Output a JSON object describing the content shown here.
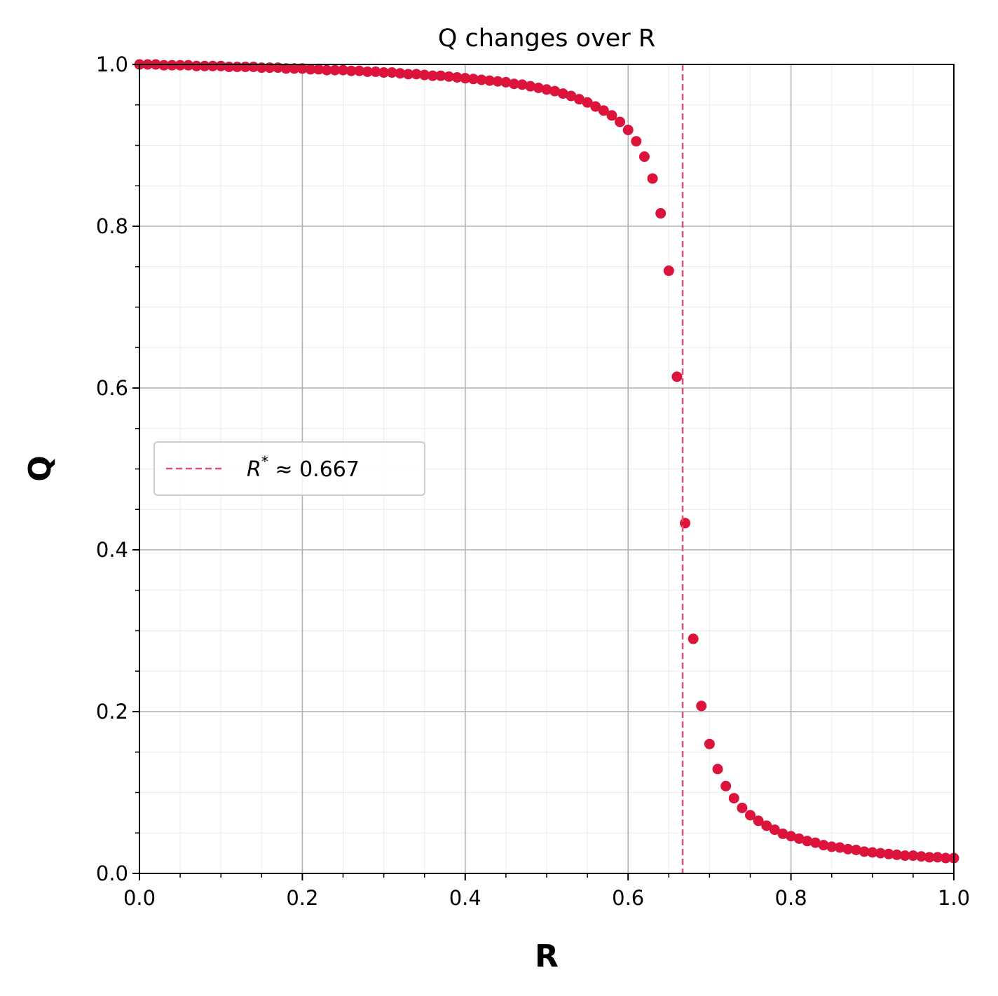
{
  "chart_data": {
    "type": "scatter",
    "title": "Q changes over R",
    "xlabel": "R",
    "ylabel": "Q",
    "xlim": [
      0,
      1
    ],
    "ylim": [
      0,
      1
    ],
    "xticks": [
      "0.0",
      "0.2",
      "0.4",
      "0.6",
      "0.8",
      "1.0"
    ],
    "yticks": [
      "0.0",
      "0.2",
      "0.4",
      "0.6",
      "0.8",
      "1.0"
    ],
    "grid": true,
    "minor_grid": true,
    "colors": {
      "marker": "#dc143c",
      "refline": "#e05070",
      "grid_major": "#b0b0b0",
      "grid_minor": "#ececec"
    },
    "reference_line": {
      "x": 0.667,
      "style": "dashed",
      "label_symbol": "R",
      "label_superscript": "*",
      "label_text": " ≈ 0.667"
    },
    "legend_placement": "center-left",
    "series": [
      {
        "marker": "circle",
        "x": [
          0.0,
          0.01,
          0.02,
          0.03,
          0.04,
          0.05,
          0.06,
          0.07,
          0.08,
          0.09,
          0.1,
          0.11,
          0.12,
          0.13,
          0.14,
          0.15,
          0.16,
          0.17,
          0.18,
          0.19,
          0.2,
          0.21,
          0.22,
          0.23,
          0.24,
          0.25,
          0.26,
          0.27,
          0.28,
          0.29,
          0.3,
          0.31,
          0.32,
          0.33,
          0.34,
          0.35,
          0.36,
          0.37,
          0.38,
          0.39,
          0.4,
          0.41,
          0.42,
          0.43,
          0.44,
          0.45,
          0.46,
          0.47,
          0.48,
          0.49,
          0.5,
          0.51,
          0.52,
          0.53,
          0.54,
          0.55,
          0.56,
          0.57,
          0.58,
          0.59,
          0.6,
          0.61,
          0.62,
          0.63,
          0.64,
          0.65,
          0.66,
          0.67,
          0.68,
          0.69,
          0.7,
          0.71,
          0.72,
          0.73,
          0.74,
          0.75,
          0.76,
          0.77,
          0.78,
          0.79,
          0.8,
          0.81,
          0.82,
          0.83,
          0.84,
          0.85,
          0.86,
          0.87,
          0.88,
          0.89,
          0.9,
          0.91,
          0.92,
          0.93,
          0.94,
          0.95,
          0.96,
          0.97,
          0.98,
          0.99,
          1.0
        ],
        "y": [
          1.0,
          1.0,
          1.0,
          0.999,
          0.999,
          0.999,
          0.999,
          0.998,
          0.998,
          0.998,
          0.998,
          0.997,
          0.997,
          0.997,
          0.997,
          0.996,
          0.996,
          0.996,
          0.995,
          0.995,
          0.995,
          0.994,
          0.994,
          0.993,
          0.993,
          0.993,
          0.992,
          0.992,
          0.991,
          0.991,
          0.99,
          0.99,
          0.989,
          0.988,
          0.988,
          0.987,
          0.986,
          0.986,
          0.985,
          0.984,
          0.983,
          0.982,
          0.981,
          0.98,
          0.979,
          0.978,
          0.976,
          0.975,
          0.973,
          0.971,
          0.969,
          0.967,
          0.964,
          0.961,
          0.957,
          0.953,
          0.948,
          0.943,
          0.937,
          0.929,
          0.919,
          0.905,
          0.886,
          0.859,
          0.816,
          0.745,
          0.614,
          0.433,
          0.29,
          0.207,
          0.16,
          0.129,
          0.108,
          0.093,
          0.081,
          0.072,
          0.065,
          0.059,
          0.054,
          0.049,
          0.046,
          0.043,
          0.04,
          0.038,
          0.035,
          0.033,
          0.032,
          0.03,
          0.029,
          0.027,
          0.026,
          0.025,
          0.024,
          0.023,
          0.022,
          0.022,
          0.021,
          0.02,
          0.02,
          0.019,
          0.019
        ]
      }
    ]
  }
}
